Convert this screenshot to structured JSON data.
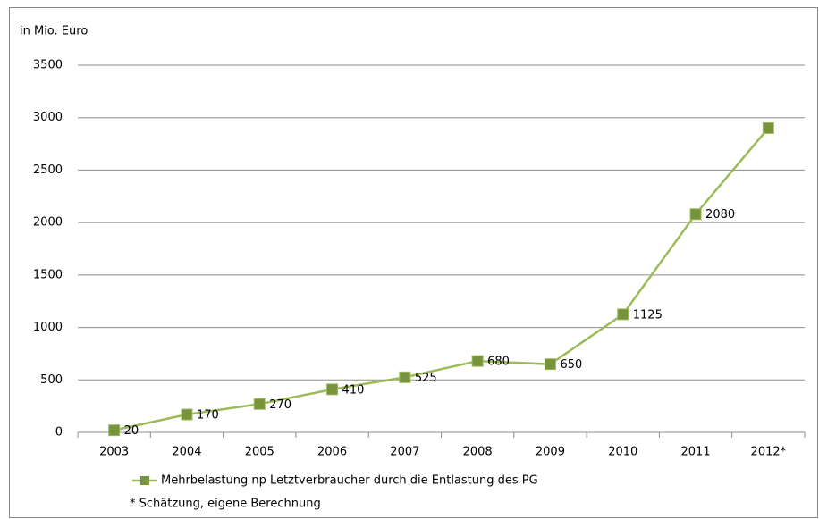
{
  "chart_data": {
    "type": "line",
    "ylabel": "in Mio. Euro",
    "categories": [
      "2003",
      "2004",
      "2005",
      "2006",
      "2007",
      "2008",
      "2009",
      "2010",
      "2011",
      "2012*"
    ],
    "series": [
      {
        "name": "Mehrbelastung np Letztverbraucher durch die Entlastung des PG",
        "color": "#9bbb59",
        "values": [
          20,
          170,
          270,
          410,
          525,
          680,
          650,
          1125,
          2080,
          2900
        ],
        "value_labels": [
          "20",
          "170",
          "270",
          "410",
          "525",
          "680",
          "650",
          "1125",
          "2080",
          null
        ]
      }
    ],
    "ylim": [
      0,
      3500
    ],
    "yticks": [
      0,
      500,
      1000,
      1500,
      2000,
      2500,
      3000,
      3500
    ],
    "grid": true,
    "legend": "bottom",
    "footnote": "* Schätzung, eigene Berechnung"
  }
}
